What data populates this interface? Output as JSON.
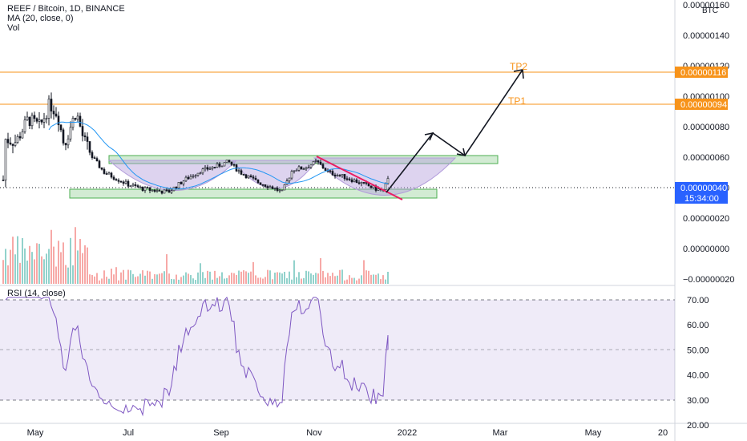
{
  "header": {
    "symbol_line": "REEF / Bitcoin, 1D, BINANCE",
    "ma_line": "MA (20, close, 0)",
    "vol_line": "Vol",
    "rsi_title": "RSI (14, close)",
    "currency": "BTC"
  },
  "price_axis": {
    "ticks": [
      "0.00000160",
      "0.00000140",
      "0.00000120",
      "0.00000100",
      "0.00000080",
      "0.00000060",
      "0.00000040",
      "0.00000020",
      "0.00000000",
      "−0.00000020"
    ],
    "tick_values": [
      1.6e-06,
      1.4e-06,
      1.2e-06,
      1e-06,
      8e-07,
      6e-07,
      4e-07,
      2e-07,
      0,
      -2e-07
    ]
  },
  "badges": {
    "tp2_price": "0.00000116",
    "tp1_price": "0.00000094",
    "last_price": "0.00000040",
    "countdown": "15:34:00"
  },
  "labels": {
    "tp2": "TP2",
    "tp1": "TP1"
  },
  "rsi_axis": {
    "ticks": [
      "70.00",
      "60.00",
      "50.00",
      "40.00",
      "30.00",
      "20.00"
    ],
    "tick_values": [
      70,
      60,
      50,
      40,
      30,
      20
    ]
  },
  "time_axis": {
    "ticks": [
      "May",
      "Jul",
      "Sep",
      "Nov",
      "2022",
      "Mar",
      "May",
      "20"
    ],
    "months_from_may_2021": [
      0,
      2,
      4,
      6,
      8,
      10,
      12,
      13.5
    ]
  },
  "colors": {
    "up": "#26a69a",
    "down": "#ef5350",
    "candle": "#131722",
    "ma": "#2196f3",
    "rsi": "#7e57c2",
    "tp": "#f7931a",
    "zone": "#4caf50",
    "trend": "#e91e63",
    "cup": "#b39ddb",
    "badge_blue": "#2962ff"
  },
  "chart_data": [
    {
      "type": "candlestick",
      "title": "REEF / Bitcoin, 1D, BINANCE",
      "y_unit": "BTC",
      "ylim": [
        -2.2e-07,
        1.63e-06
      ],
      "x_range": [
        "2021-04-20",
        "2022-06-25"
      ],
      "series": [
        {
          "name": "REEF / Bitcoin",
          "x": [
            "2021-04",
            "2021-05",
            "2021-06",
            "2021-07",
            "2021-08",
            "2021-09",
            "2021-10",
            "2021-11",
            "2021-12-20"
          ],
          "close": [
            7.5e-07,
            6.5e-07,
            5e-07,
            3.8e-07,
            5e-07,
            5.2e-07,
            4e-07,
            5.8e-07,
            4e-07
          ]
        },
        {
          "name": "MA (20, close, 0)",
          "x": [
            "2021-05",
            "2021-06",
            "2021-07",
            "2021-08",
            "2021-09",
            "2021-10",
            "2021-11",
            "2021-12"
          ],
          "values": [
            8.2e-07,
            5.8e-07,
            4e-07,
            4.6e-07,
            5.2e-07,
            4e-07,
            5.5e-07,
            4e-07
          ]
        }
      ],
      "horizontal_levels": [
        {
          "label": "TP2",
          "value": 1.16e-06
        },
        {
          "label": "TP1",
          "value": 9.4e-07
        },
        {
          "label": "last",
          "value": 4e-07
        }
      ],
      "zones": [
        {
          "x0": "2021-06-01",
          "x1": "2022-01-25",
          "y0": 5.3e-07,
          "y1": 6.1e-07
        },
        {
          "x0": "2021-04-25",
          "x1": "2022-01-10",
          "y0": 3.2e-07,
          "y1": 3.8e-07
        }
      ],
      "projection": [
        {
          "x": "2021-12-20",
          "y": 4e-07
        },
        {
          "x": "2022-01-15",
          "y": 7.6e-07
        },
        {
          "x": "2022-02-05",
          "y": 5.8e-07
        },
        {
          "x": "2022-03-10",
          "y": 1.16e-06
        }
      ]
    },
    {
      "type": "line",
      "title": "RSI (14, close)",
      "ylim": [
        18,
        72
      ],
      "bands": [
        70,
        50,
        30
      ],
      "series": [
        {
          "name": "RSI (14, close)",
          "x": [
            "2021-05",
            "2021-06",
            "2021-07",
            "2021-08",
            "2021-09",
            "2021-10",
            "2021-11",
            "2021-12",
            "2021-12-20"
          ],
          "values": [
            55,
            45,
            38,
            70,
            45,
            40,
            65,
            35,
            50
          ]
        }
      ]
    }
  ]
}
